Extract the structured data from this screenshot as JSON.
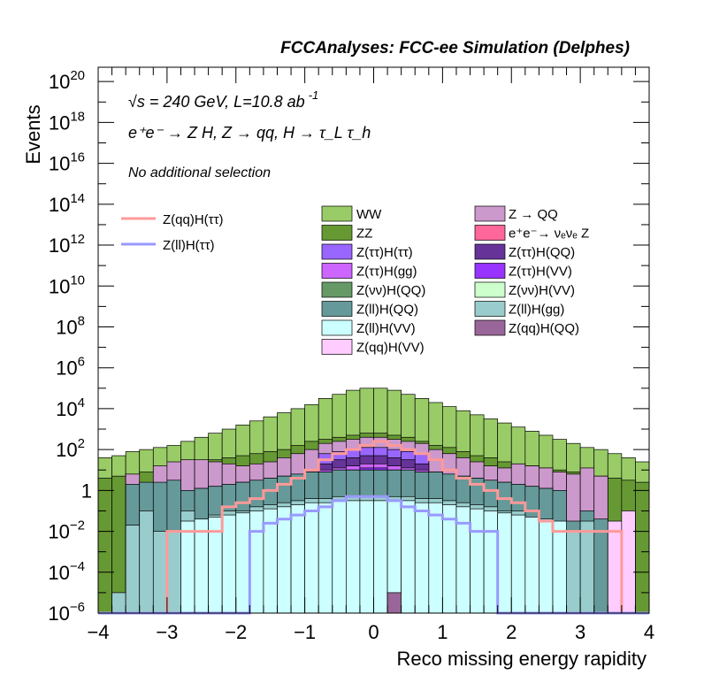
{
  "chart_data": {
    "type": "area",
    "title": "FCCAnalyses: FCC-ee Simulation (Delphes)",
    "xlabel": "Reco missing energy rapidity",
    "ylabel": "Events",
    "xlim": [
      -4,
      4
    ],
    "ylim_log10": [
      -6,
      20.7
    ],
    "y_scale": "log",
    "x_ticks": [
      "−4",
      "−3",
      "−2",
      "−1",
      "0",
      "1",
      "2",
      "3",
      "4"
    ],
    "y_ticks": [
      {
        "mantissa": "10",
        "exp": "−6",
        "value": -6
      },
      {
        "mantissa": "10",
        "exp": "−4",
        "value": -4
      },
      {
        "mantissa": "10",
        "exp": "−2",
        "value": -2
      },
      {
        "mantissa": "1",
        "exp": "",
        "value": 0
      },
      {
        "mantissa": "10",
        "exp": "2",
        "value": 2
      },
      {
        "mantissa": "10",
        "exp": "4",
        "value": 4
      },
      {
        "mantissa": "10",
        "exp": "6",
        "value": 6
      },
      {
        "mantissa": "10",
        "exp": "8",
        "value": 8
      },
      {
        "mantissa": "10",
        "exp": "10",
        "value": 10
      },
      {
        "mantissa": "10",
        "exp": "12",
        "value": 12
      },
      {
        "mantissa": "10",
        "exp": "14",
        "value": 14
      },
      {
        "mantissa": "10",
        "exp": "16",
        "value": 16
      },
      {
        "mantissa": "10",
        "exp": "18",
        "value": 18
      },
      {
        "mantissa": "10",
        "exp": "20",
        "value": 20
      }
    ],
    "annotations": {
      "energy": "√s = 240 GeV, L=10.8 ab",
      "energy_sup": "-1",
      "process": "e⁺e⁻ → Z H, Z → qq, H → τ_L τ_h",
      "selection": "No additional selection"
    },
    "bin_edges_start": -4.0,
    "bin_width": 0.2,
    "stack_note": "Values are log10 of the cumulative stacked height (top edge) of each band at each of 40 bins from -4 to 4.",
    "stack": [
      {
        "name": "WW",
        "color": "#99cc66",
        "log10_top": [
          1.6,
          1.7,
          1.9,
          2.0,
          2.1,
          2.2,
          2.4,
          2.6,
          2.8,
          3.0,
          3.2,
          3.4,
          3.6,
          3.8,
          4.0,
          4.2,
          4.5,
          4.7,
          4.9,
          5.0,
          5.0,
          4.9,
          4.7,
          4.5,
          4.3,
          4.1,
          3.9,
          3.7,
          3.5,
          3.3,
          3.1,
          2.9,
          2.7,
          2.5,
          2.3,
          2.1,
          2.0,
          1.8,
          1.6,
          1.4
        ]
      },
      {
        "name": "ZZ",
        "color": "#669933",
        "log10_top": [
          0.6,
          0.7,
          0.8,
          0.9,
          1.0,
          1.1,
          1.3,
          1.4,
          1.5,
          1.6,
          1.7,
          1.8,
          1.9,
          2.0,
          2.2,
          2.4,
          2.5,
          2.6,
          2.7,
          2.8,
          2.8,
          2.7,
          2.6,
          2.4,
          2.2,
          2.1,
          1.9,
          1.7,
          1.6,
          1.4,
          1.3,
          1.2,
          1.1,
          1.0,
          0.9,
          0.8,
          0.7,
          0.6,
          0.5,
          0.4
        ]
      },
      {
        "name": "Z → QQ",
        "color": "#cc99cc",
        "log10_top": [
          -6.0,
          -6.0,
          0.8,
          -6.0,
          1.2,
          1.4,
          1.5,
          1.5,
          1.4,
          1.3,
          1.2,
          1.3,
          1.4,
          1.6,
          1.8,
          2.0,
          2.3,
          2.4,
          2.5,
          2.6,
          2.6,
          2.5,
          2.4,
          2.3,
          2.0,
          1.8,
          1.6,
          1.4,
          1.2,
          1.1,
          1.3,
          1.2,
          1.1,
          0.9,
          0.8,
          1.1,
          0.7,
          -6.0,
          -6.0,
          -6.0
        ]
      },
      {
        "name": "e⁺e⁻→ νₑνₑ Z",
        "color": "#ff6699",
        "log10_top": [
          -6,
          -6,
          -6,
          -6,
          -6,
          -6,
          -6,
          -6,
          -6,
          -6,
          -6,
          -6,
          -6,
          -6,
          -6,
          -6,
          -6,
          -6,
          -6,
          -0.5,
          -0.5,
          -6,
          -6,
          -6,
          -6,
          -6,
          -6,
          -6,
          -6,
          -6,
          -6,
          -6,
          -6,
          -6,
          -6,
          -6,
          -6,
          -6,
          -6,
          -6
        ]
      },
      {
        "name": "Z(ττ)H(ττ)",
        "color": "#9966ff",
        "log10_top": [
          -6,
          -6,
          -6,
          -6,
          -6,
          -6,
          -6,
          -6,
          -6,
          -6,
          -6,
          -6,
          -6,
          -6,
          -6,
          -6,
          1.8,
          1.9,
          2.0,
          2.1,
          2.1,
          2.0,
          1.9,
          1.8,
          -6,
          -6,
          -6,
          -6,
          -6,
          -6,
          -6,
          -6,
          -6,
          -6,
          -6,
          -6,
          -6,
          -6,
          -6,
          -6
        ]
      },
      {
        "name": "Z(ττ)H(QQ)",
        "color": "#663399",
        "log10_top": [
          -6,
          -6,
          -6,
          -6,
          -6,
          -6,
          -6,
          -6,
          -6,
          -6,
          -6,
          -6,
          -6,
          -6,
          -6,
          -6,
          1.3,
          1.5,
          1.6,
          1.7,
          1.7,
          1.6,
          1.5,
          1.3,
          -6,
          -6,
          -6,
          -6,
          -6,
          -6,
          -6,
          -6,
          -6,
          -6,
          -6,
          -6,
          -6,
          -6,
          -6,
          -6
        ]
      },
      {
        "name": "Z(ττ)H(gg)",
        "color": "#cc66ff",
        "log10_top": [
          -6,
          -6,
          -6,
          -6,
          -6,
          -6,
          -6,
          -2.0,
          -2.0,
          -6,
          -6,
          -6,
          -6,
          -6,
          -6,
          -6,
          1.0,
          1.1,
          1.2,
          1.3,
          1.3,
          1.2,
          1.1,
          1.0,
          -6,
          -6,
          -6,
          -6,
          -6,
          -6,
          -6,
          -6,
          -6,
          -6,
          -6,
          -6,
          -6,
          -6,
          -6,
          -6
        ]
      },
      {
        "name": "Z(ττ)H(VV)",
        "color": "#9933ff",
        "log10_top": [
          -6,
          -6,
          -6,
          -6,
          -6,
          -6,
          -6,
          -6,
          -6,
          -6,
          -6,
          -6,
          -6,
          -6,
          -6,
          -6,
          0.8,
          0.9,
          1.0,
          1.1,
          1.1,
          1.0,
          0.9,
          0.8,
          -6,
          -6,
          -6,
          -6,
          -6,
          -6,
          -6,
          -6,
          -6,
          -6,
          -6,
          -6,
          -6,
          -6,
          -6,
          -6
        ]
      },
      {
        "name": "Z(νν)H(QQ)",
        "color": "#669966",
        "log10_top": [
          -6,
          -6,
          -6,
          -6,
          -6,
          -6,
          0.0,
          0.1,
          0.2,
          0.3,
          0.4,
          0.5,
          0.6,
          0.7,
          0.8,
          0.9,
          0.9,
          1.0,
          1.0,
          1.0,
          1.0,
          1.0,
          1.0,
          0.9,
          0.9,
          0.8,
          0.7,
          0.6,
          0.5,
          0.4,
          0.3,
          0.2,
          0.1,
          0.0,
          -6,
          -6,
          -6,
          -6,
          -6,
          -6
        ]
      },
      {
        "name": "Z(νν)H(VV)",
        "color": "#ccffcc",
        "log10_top": [
          -6,
          -6,
          -6,
          -6,
          -6,
          -6,
          -0.6,
          -0.5,
          -0.4,
          -0.3,
          -0.2,
          -0.1,
          0.0,
          0.1,
          0.2,
          0.3,
          0.3,
          0.4,
          0.4,
          0.4,
          0.4,
          0.4,
          0.4,
          0.3,
          0.3,
          0.2,
          0.1,
          0.0,
          -0.1,
          -0.2,
          -0.3,
          -0.4,
          -0.5,
          -0.6,
          -6,
          -6,
          -6,
          -6,
          -6,
          -6
        ]
      },
      {
        "name": "Z(ll)H(QQ)",
        "color": "#669999",
        "log10_top": [
          -6.0,
          -6.0,
          0.3,
          0.4,
          0.4,
          0.5,
          0.0,
          0.1,
          0.2,
          0.3,
          0.4,
          0.5,
          0.6,
          0.7,
          0.8,
          0.9,
          0.9,
          1.0,
          1.0,
          1.0,
          1.0,
          1.0,
          1.0,
          0.9,
          0.9,
          0.8,
          0.7,
          0.6,
          0.5,
          0.4,
          0.3,
          0.2,
          0.1,
          0.0,
          -1.5,
          -1.0,
          -1.4,
          -2.0,
          -1.6,
          -6.0
        ]
      },
      {
        "name": "Z(ll)H(gg)",
        "color": "#99cccc",
        "log10_top": [
          -6.0,
          -5.0,
          -1.7,
          -1.0,
          -2.0,
          -2.0,
          -1.0,
          -2.0,
          -1.2,
          -1.0,
          -1.0,
          -0.8,
          -0.7,
          -0.6,
          -0.5,
          -0.4,
          -0.4,
          -0.3,
          -0.3,
          -0.3,
          -0.3,
          -0.3,
          -0.3,
          -0.4,
          -0.4,
          -0.5,
          -0.6,
          -0.7,
          -0.8,
          -1.0,
          -1.0,
          -1.6,
          -1.6,
          -2.0,
          -2.0,
          -1.5,
          -6.0,
          -2.0,
          -6.0,
          -6.0
        ]
      },
      {
        "name": "Z(ll)H(VV)",
        "color": "#ccffff",
        "log10_top": [
          -6,
          -6,
          -6,
          -6,
          -6,
          -6,
          -1.5,
          -1.4,
          -1.3,
          -1.2,
          -1.1,
          -1.0,
          -0.9,
          -0.8,
          -0.7,
          -0.6,
          -0.6,
          -0.5,
          -0.5,
          -0.5,
          -0.5,
          -0.5,
          -0.5,
          -0.6,
          -0.6,
          -0.7,
          -0.8,
          -0.9,
          -1.0,
          -1.1,
          -1.2,
          -1.3,
          -1.4,
          -1.5,
          -6,
          -6,
          -6,
          -6,
          -6,
          -6
        ]
      },
      {
        "name": "Z(qq)H(QQ)",
        "color": "#996699",
        "log10_top": [
          -6,
          -6,
          -6,
          -6,
          -6,
          -6,
          -6,
          -6,
          -6,
          -6,
          -6,
          -6,
          -6,
          -6,
          -6,
          -6,
          -6,
          -6,
          -6,
          -6,
          -6,
          -5,
          -6,
          -6,
          -6,
          -6,
          -6,
          -6,
          -6,
          -6,
          -6,
          -6,
          -6,
          -6,
          -6,
          -6,
          -6,
          -6,
          -6,
          -6
        ]
      },
      {
        "name": "Z(qq)H(VV)",
        "color": "#ffccff",
        "log10_top": [
          -6,
          -6,
          -6,
          -6,
          -6,
          -6,
          -6,
          -6,
          -6,
          -6,
          -6,
          -6,
          -6,
          -6,
          -6,
          -6,
          -6,
          -6,
          -6,
          -6,
          -6,
          -6,
          -6,
          -6,
          -6,
          -6,
          -6,
          -6,
          -6,
          -6,
          -6,
          -6,
          -6,
          -6,
          -6,
          -6,
          -6,
          -1.5,
          -1.0,
          -6
        ]
      }
    ],
    "overlay_lines": [
      {
        "name": "Z(qq)H(ττ)",
        "color": "#ff9999",
        "log10": [
          -6,
          -6,
          -6,
          -6,
          -6,
          -2.0,
          -2.0,
          -2.0,
          -2.0,
          -0.8,
          -0.6,
          -0.4,
          0.0,
          0.3,
          0.6,
          1.0,
          1.5,
          1.8,
          2.0,
          2.2,
          2.4,
          2.2,
          2.0,
          1.8,
          1.5,
          1.0,
          0.6,
          0.3,
          0.0,
          -0.4,
          -0.6,
          -1.0,
          -1.5,
          -2.0,
          -2.0,
          -2.0,
          -2.0,
          -2.0,
          -6,
          -6
        ]
      },
      {
        "name": "Z(ll)H(ττ)",
        "color": "#9999ff",
        "log10": [
          -6,
          -6,
          -6,
          -6,
          -6,
          -6,
          -6,
          -6,
          -6,
          -6,
          -6,
          -2.0,
          -1.6,
          -1.4,
          -1.2,
          -1.0,
          -0.8,
          -0.5,
          -0.3,
          -0.3,
          -0.3,
          -0.5,
          -0.8,
          -1.0,
          -1.2,
          -1.4,
          -1.6,
          -2.0,
          -2.0,
          -6,
          -6,
          -6,
          -6,
          -6,
          -6,
          -6,
          -6,
          -6,
          -6,
          -6
        ]
      }
    ]
  },
  "legend_left": [
    {
      "name": "Z(qq)H(ττ)",
      "color": "#ff9999",
      "style": "line"
    },
    {
      "name": "Z(ll)H(ττ)",
      "color": "#9999ff",
      "style": "line"
    }
  ],
  "legend_col1": [
    {
      "name": "WW",
      "color": "#99cc66"
    },
    {
      "name": "ZZ",
      "color": "#669933"
    },
    {
      "name": "Z(ττ)H(ττ)",
      "color": "#9966ff"
    },
    {
      "name": "Z(ττ)H(gg)",
      "color": "#cc66ff"
    },
    {
      "name": "Z(νν)H(QQ)",
      "color": "#669966"
    },
    {
      "name": "Z(ll)H(QQ)",
      "color": "#669999"
    },
    {
      "name": "Z(ll)H(VV)",
      "color": "#ccffff"
    },
    {
      "name": "Z(qq)H(VV)",
      "color": "#ffccff"
    }
  ],
  "legend_col2": [
    {
      "name": "Z → QQ",
      "color": "#cc99cc"
    },
    {
      "name": "e⁺e⁻→ νₑνₑ Z",
      "color": "#ff6699"
    },
    {
      "name": "Z(ττ)H(QQ)",
      "color": "#663399"
    },
    {
      "name": "Z(ττ)H(VV)",
      "color": "#9933ff"
    },
    {
      "name": "Z(νν)H(VV)",
      "color": "#ccffcc"
    },
    {
      "name": "Z(ll)H(gg)",
      "color": "#99cccc"
    },
    {
      "name": "Z(qq)H(QQ)",
      "color": "#996699"
    }
  ]
}
